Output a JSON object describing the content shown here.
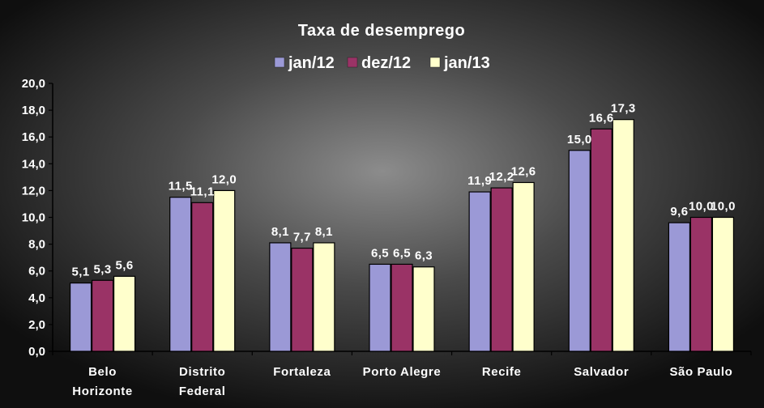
{
  "chart_data": {
    "type": "bar",
    "title": "Taxa de desemprego",
    "xlabel": "",
    "ylabel": "",
    "ylim": [
      0,
      20
    ],
    "yticks": [
      "0,0",
      "2,0",
      "4,0",
      "6,0",
      "8,0",
      "10,0",
      "12,0",
      "14,0",
      "16,0",
      "18,0",
      "20,0"
    ],
    "legend_position": "top-center",
    "grid": false,
    "categories": [
      [
        "Belo",
        "Horizonte"
      ],
      [
        "Distrito",
        "Federal"
      ],
      [
        "Fortaleza"
      ],
      [
        "Porto Alegre"
      ],
      [
        "Recife"
      ],
      [
        "Salvador"
      ],
      [
        "São Paulo"
      ]
    ],
    "series": [
      {
        "name": "jan/12",
        "color": "#9b99d6",
        "values": [
          5.1,
          11.5,
          8.1,
          6.5,
          11.9,
          15.0,
          9.6
        ],
        "labels": [
          "5,1",
          "11,5",
          "8,1",
          "6,5",
          "11,9",
          "15,0",
          "9,6"
        ]
      },
      {
        "name": "dez/12",
        "color": "#9a3366",
        "values": [
          5.3,
          11.1,
          7.7,
          6.5,
          12.2,
          16.6,
          10.0
        ],
        "labels": [
          "5,3",
          "11,1",
          "7,7",
          "6,5",
          "12,2",
          "16,6",
          "10,0"
        ]
      },
      {
        "name": "jan/13",
        "color": "#ffffcc",
        "values": [
          5.6,
          12.0,
          8.1,
          6.3,
          12.6,
          17.3,
          10.0
        ],
        "labels": [
          "5,6",
          "12,0",
          "8,1",
          "6,3",
          "12,6",
          "17,3",
          "10,0"
        ]
      }
    ]
  }
}
